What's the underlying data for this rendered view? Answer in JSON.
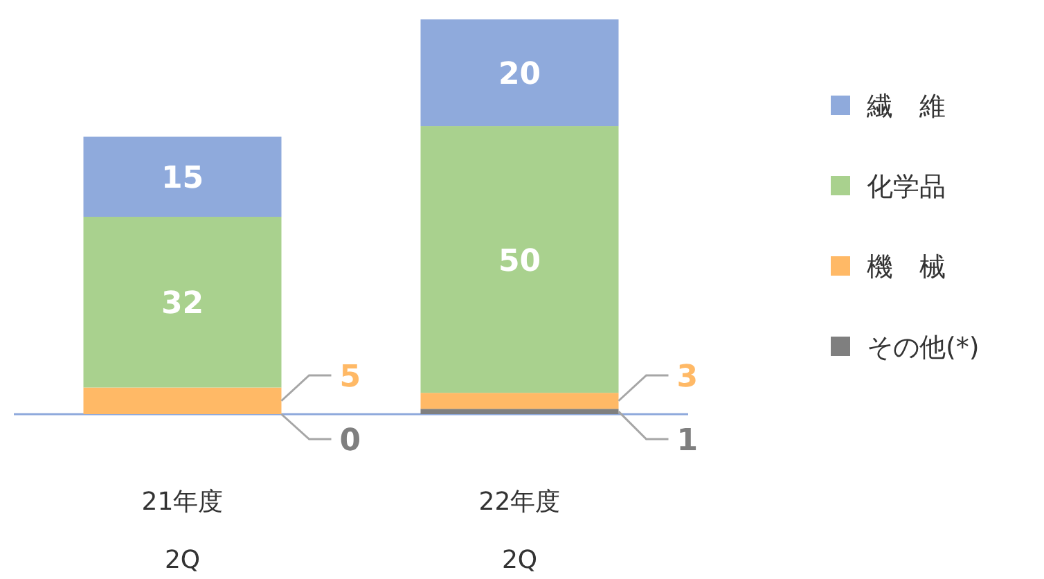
{
  "chart_data": {
    "type": "bar",
    "stacked": true,
    "data_labels": true,
    "legend": "right",
    "categories": [
      "21年度\n2Q",
      "22年度\n2Q"
    ],
    "series": [
      {
        "name": "その他(*)",
        "color": "#7f7f7f",
        "values": [
          0,
          1
        ]
      },
      {
        "name": "機　械",
        "color": "#ffb966",
        "values": [
          5,
          3
        ]
      },
      {
        "name": "化学品",
        "color": "#a9d18e",
        "values": [
          32,
          50
        ]
      },
      {
        "name": "繊　維",
        "color": "#8faadc",
        "values": [
          15,
          20
        ]
      }
    ]
  }
}
